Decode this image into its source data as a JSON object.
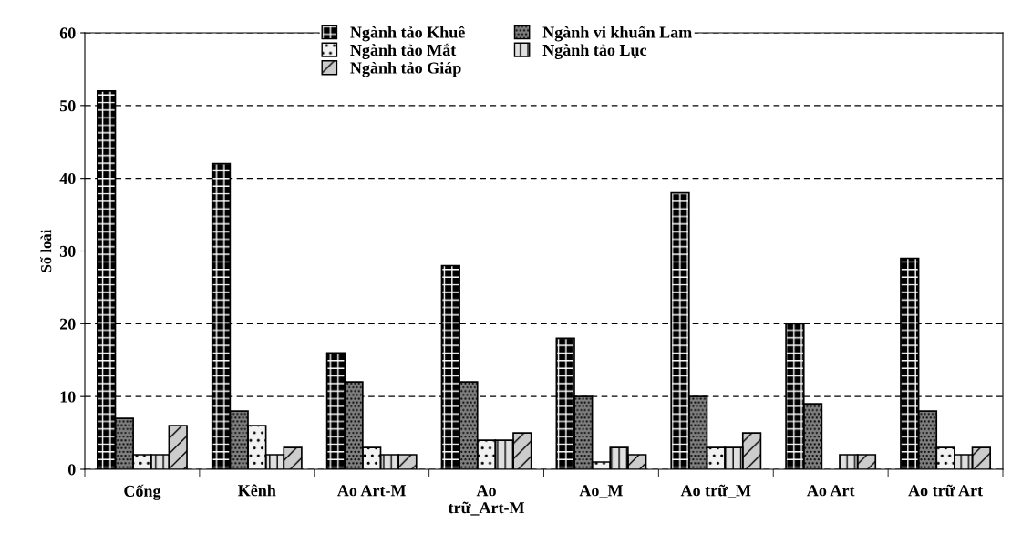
{
  "chart_data": {
    "type": "bar",
    "ylabel": "Số loài",
    "categories": [
      "Cống",
      "Kênh",
      "Ao Art-M",
      "Ao\ntrữ_Art-M",
      "Ao_M",
      "Ao trữ_M",
      "Ao Art",
      "Ao trữ Art"
    ],
    "series": [
      {
        "name": "Ngành tảo Khuê",
        "color": "#000000",
        "values": [
          52,
          42,
          16,
          28,
          18,
          38,
          20,
          29
        ]
      },
      {
        "name": "Ngành vi khuẩn Lam",
        "color": "#808080",
        "values": [
          7,
          8,
          12,
          12,
          10,
          10,
          9,
          8
        ]
      },
      {
        "name": "Ngành tảo Mắt",
        "color": "#f2f2f2",
        "values": [
          2,
          6,
          3,
          4,
          1,
          3,
          0,
          3
        ]
      },
      {
        "name": "Ngành tảo Lục",
        "color": "#e0e0e0",
        "values": [
          2,
          2,
          2,
          4,
          3,
          3,
          2,
          2
        ]
      },
      {
        "name": "Ngành tảo Giáp",
        "color": "#cccccc",
        "values": [
          6,
          3,
          2,
          5,
          2,
          5,
          2,
          3
        ]
      }
    ],
    "ylim": [
      0,
      60
    ],
    "yticks": [
      0,
      10,
      20,
      30,
      40,
      50,
      60
    ],
    "grid": "y",
    "legend": "top"
  }
}
